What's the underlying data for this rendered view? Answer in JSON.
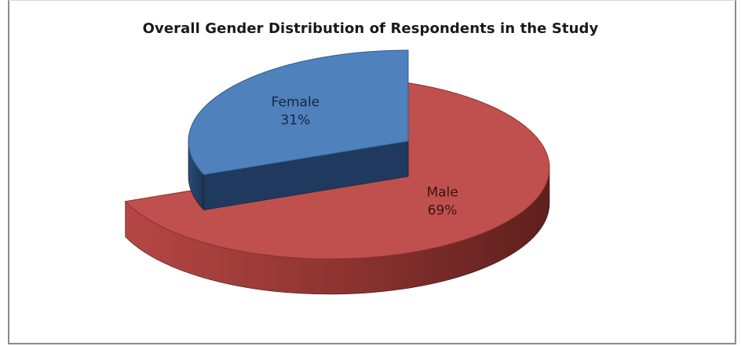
{
  "chart_data": {
    "type": "pie",
    "title": "Overall Gender Distribution of Respondents in the Study",
    "categories": [
      "Male",
      "Female"
    ],
    "values": [
      69,
      31
    ],
    "value_labels": [
      "69%",
      "31%"
    ],
    "exploded": [
      "Female"
    ],
    "legend": "none",
    "three_d": true,
    "colors": {
      "Male": {
        "top": "#c0504d",
        "side": "#7f2d2b"
      },
      "Female": {
        "top": "#4f81bd",
        "side": "#1f3a5e"
      }
    }
  }
}
